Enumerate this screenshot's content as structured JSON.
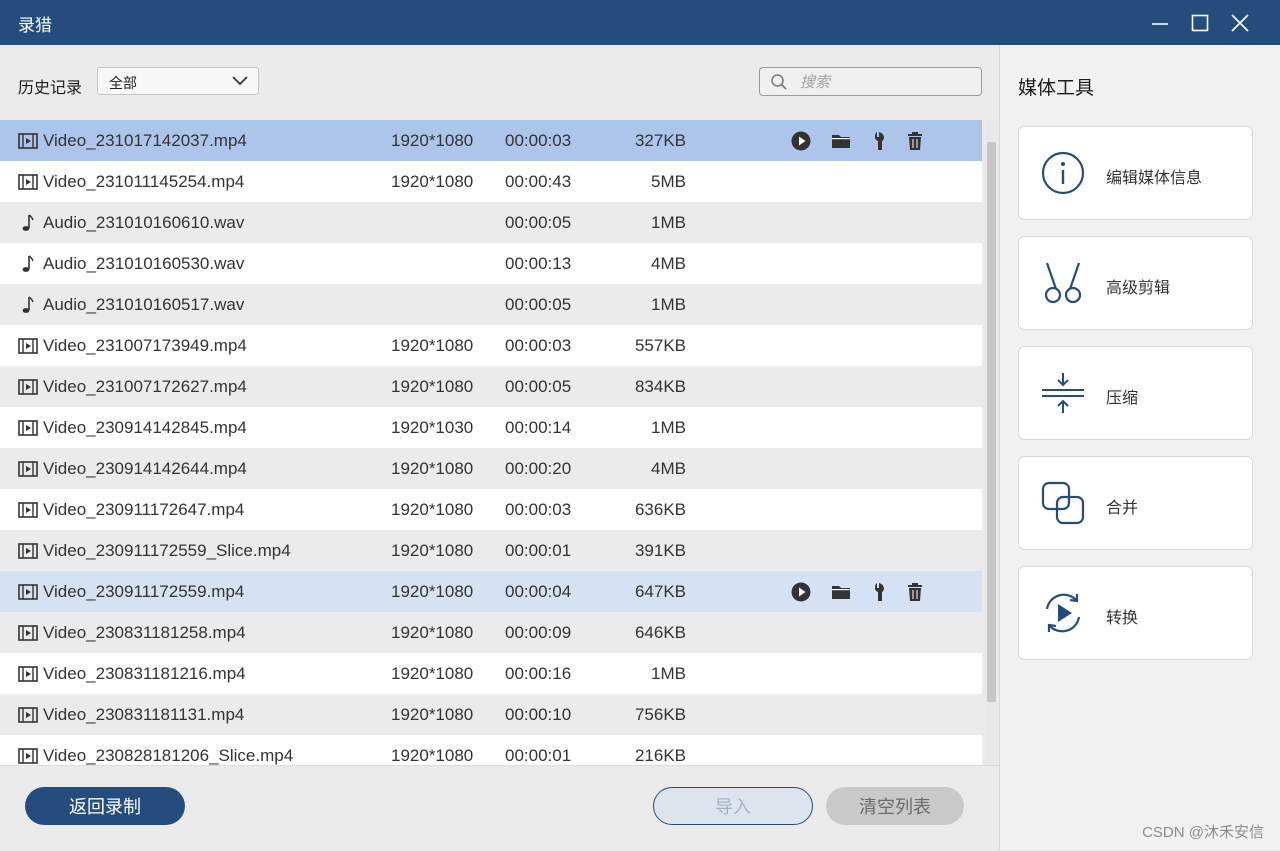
{
  "window": {
    "title": "录猎"
  },
  "history": {
    "label": "历史记录",
    "filter_value": "全部",
    "search_placeholder": "搜索"
  },
  "files": [
    {
      "name": "Video_231017142037.mp4",
      "type": "video",
      "resolution": "1920*1080",
      "duration": "00:00:03",
      "size": "327KB",
      "state": "selected"
    },
    {
      "name": "Video_231011145254.mp4",
      "type": "video",
      "resolution": "1920*1080",
      "duration": "00:00:43",
      "size": "5MB",
      "state": ""
    },
    {
      "name": "Audio_231010160610.wav",
      "type": "audio",
      "resolution": "",
      "duration": "00:00:05",
      "size": "1MB",
      "state": ""
    },
    {
      "name": "Audio_231010160530.wav",
      "type": "audio",
      "resolution": "",
      "duration": "00:00:13",
      "size": "4MB",
      "state": ""
    },
    {
      "name": "Audio_231010160517.wav",
      "type": "audio",
      "resolution": "",
      "duration": "00:00:05",
      "size": "1MB",
      "state": ""
    },
    {
      "name": "Video_231007173949.mp4",
      "type": "video",
      "resolution": "1920*1080",
      "duration": "00:00:03",
      "size": "557KB",
      "state": ""
    },
    {
      "name": "Video_231007172627.mp4",
      "type": "video",
      "resolution": "1920*1080",
      "duration": "00:00:05",
      "size": "834KB",
      "state": ""
    },
    {
      "name": "Video_230914142845.mp4",
      "type": "video",
      "resolution": "1920*1030",
      "duration": "00:00:14",
      "size": "1MB",
      "state": ""
    },
    {
      "name": "Video_230914142644.mp4",
      "type": "video",
      "resolution": "1920*1080",
      "duration": "00:00:20",
      "size": "4MB",
      "state": ""
    },
    {
      "name": "Video_230911172647.mp4",
      "type": "video",
      "resolution": "1920*1080",
      "duration": "00:00:03",
      "size": "636KB",
      "state": ""
    },
    {
      "name": "Video_230911172559_Slice.mp4",
      "type": "video",
      "resolution": "1920*1080",
      "duration": "00:00:01",
      "size": "391KB",
      "state": ""
    },
    {
      "name": "Video_230911172559.mp4",
      "type": "video",
      "resolution": "1920*1080",
      "duration": "00:00:04",
      "size": "647KB",
      "state": "hover"
    },
    {
      "name": "Video_230831181258.mp4",
      "type": "video",
      "resolution": "1920*1080",
      "duration": "00:00:09",
      "size": "646KB",
      "state": ""
    },
    {
      "name": "Video_230831181216.mp4",
      "type": "video",
      "resolution": "1920*1080",
      "duration": "00:00:16",
      "size": "1MB",
      "state": ""
    },
    {
      "name": "Video_230831181131.mp4",
      "type": "video",
      "resolution": "1920*1080",
      "duration": "00:00:10",
      "size": "756KB",
      "state": ""
    },
    {
      "name": "Video_230828181206_Slice.mp4",
      "type": "video",
      "resolution": "1920*1080",
      "duration": "00:00:01",
      "size": "216KB",
      "state": ""
    }
  ],
  "buttons": {
    "back": "返回录制",
    "import": "导入",
    "clear": "清空列表"
  },
  "side": {
    "title": "媒体工具",
    "tools": [
      {
        "label": "编辑媒体信息",
        "icon": "info-icon"
      },
      {
        "label": "高级剪辑",
        "icon": "scissors-icon"
      },
      {
        "label": "压缩",
        "icon": "compress-icon"
      },
      {
        "label": "合并",
        "icon": "merge-icon"
      },
      {
        "label": "转换",
        "icon": "convert-icon"
      }
    ]
  },
  "watermark": "CSDN @沐禾安信",
  "colors": {
    "brand": "#244d7e",
    "selected_row": "#adc5ea",
    "hover_row": "#d6e2f3"
  }
}
